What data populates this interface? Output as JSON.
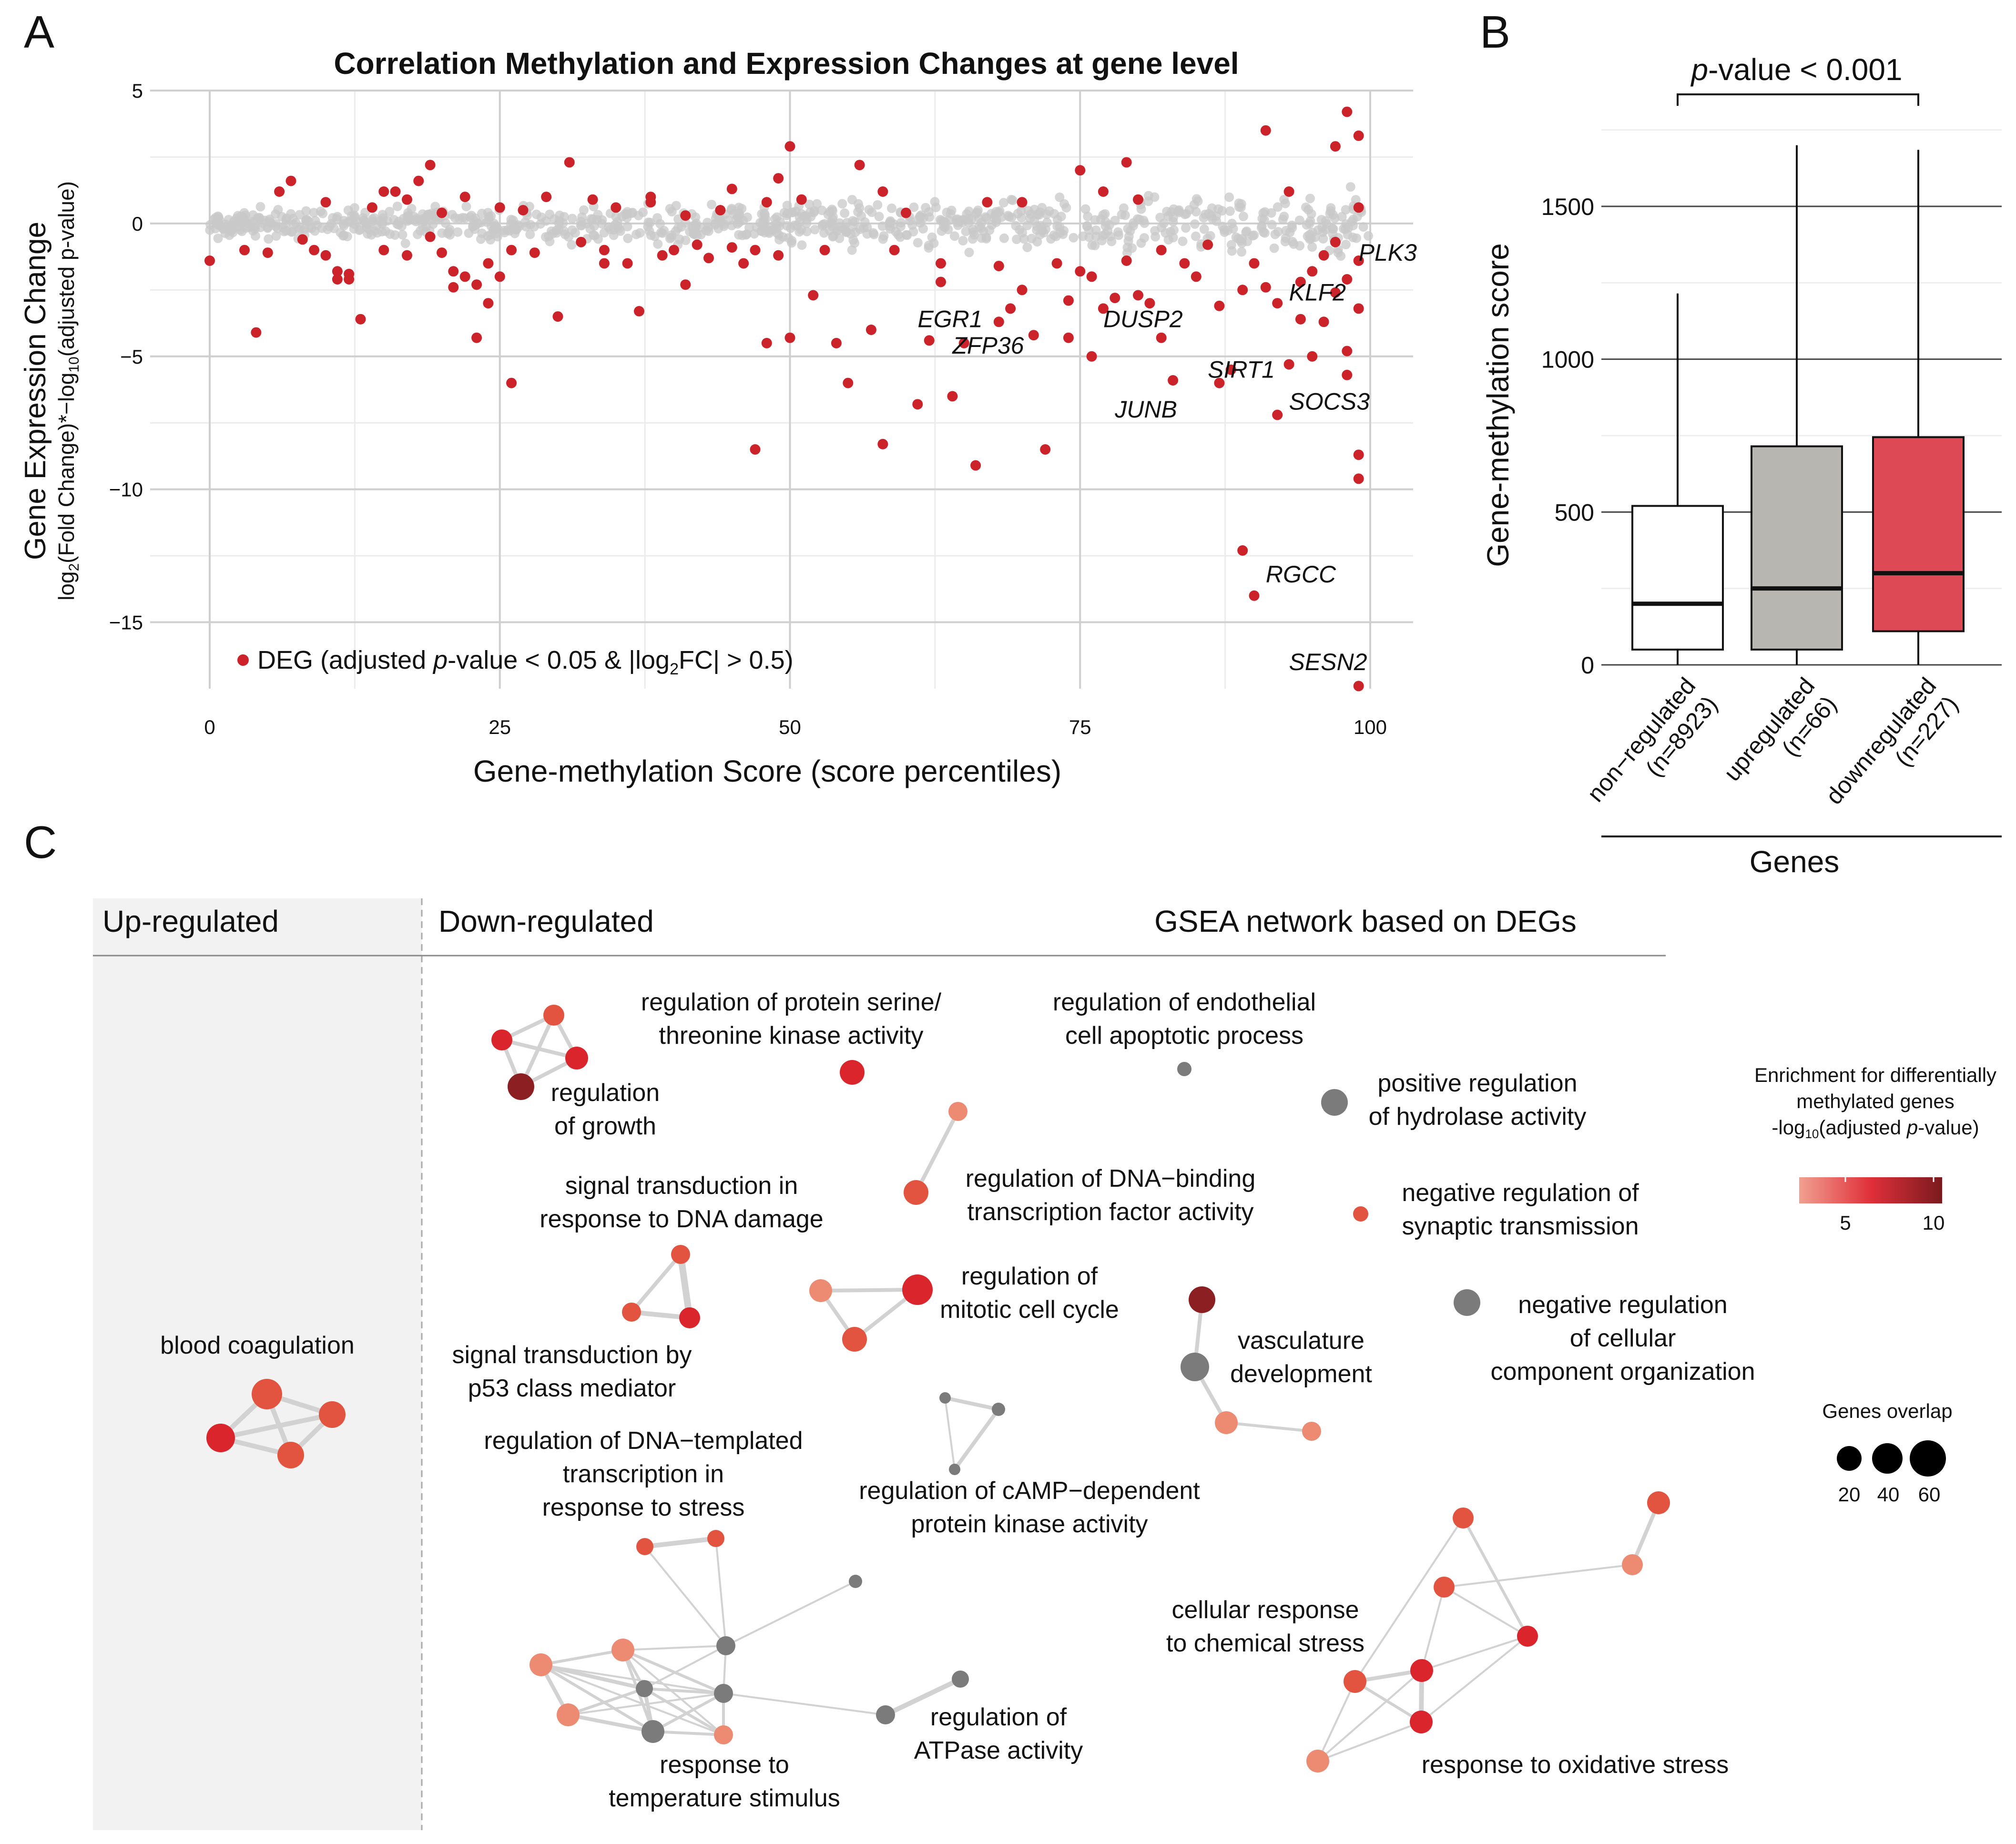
{
  "panels": {
    "a": {
      "letter": "A"
    },
    "b": {
      "letter": "B"
    },
    "c": {
      "letter": "C"
    }
  },
  "chart_data": [
    {
      "panel": "A",
      "type": "scatter",
      "title": "Correlation Methylation and Expression Changes at gene level",
      "xlabel": "Gene-methylation Score (score percentiles)",
      "ylabel_main": "Gene Expression Change",
      "ylabel_sub_parts": [
        "log",
        "2",
        "(Fold Change)*−log",
        "10",
        "(adjusted p-value)"
      ],
      "xlim": [
        0,
        100
      ],
      "ylim": [
        -17.5,
        5
      ],
      "x_ticks": [
        0,
        25,
        50,
        75,
        100
      ],
      "y_ticks": [
        5,
        0,
        -5,
        -10,
        -15
      ],
      "legend": {
        "position": "bottom-left",
        "parts": [
          "DEG (adjusted ",
          "p",
          "-value < 0.05 & |log",
          "2",
          "FC| > 0.5)"
        ],
        "color": "#cc2229"
      },
      "colors": {
        "deg": "#cc2229",
        "background": "#c8c8c8"
      },
      "background_band": {
        "description": "non-DEG genes",
        "y_range": [
          -1.0,
          1.0
        ]
      },
      "deg_points": [
        [
          0,
          -1.4
        ],
        [
          3,
          -1.0
        ],
        [
          4,
          -4.1
        ],
        [
          5,
          -1.1
        ],
        [
          6,
          1.2
        ],
        [
          7,
          1.6
        ],
        [
          8,
          -0.6
        ],
        [
          9,
          -1.0
        ],
        [
          10,
          -1.2
        ],
        [
          10,
          0.8
        ],
        [
          11,
          -1.8
        ],
        [
          11,
          -2.1
        ],
        [
          12,
          -1.9
        ],
        [
          12,
          -2.1
        ],
        [
          13,
          -3.6
        ],
        [
          14,
          0.6
        ],
        [
          15,
          -1.0
        ],
        [
          15,
          1.2
        ],
        [
          16,
          1.2
        ],
        [
          17,
          0.9
        ],
        [
          17,
          -1.2
        ],
        [
          18,
          1.6
        ],
        [
          19,
          2.2
        ],
        [
          19,
          -0.5
        ],
        [
          20,
          0.4
        ],
        [
          20,
          -1.1
        ],
        [
          21,
          -1.8
        ],
        [
          21,
          -2.4
        ],
        [
          22,
          1.0
        ],
        [
          22,
          -2.0
        ],
        [
          23,
          -2.3
        ],
        [
          23,
          -4.3
        ],
        [
          24,
          -1.5
        ],
        [
          24,
          -3.0
        ],
        [
          25,
          0.6
        ],
        [
          25,
          -2.0
        ],
        [
          26,
          -1.0
        ],
        [
          26,
          -6.0
        ],
        [
          27,
          0.5
        ],
        [
          28,
          -1.1
        ],
        [
          29,
          1.0
        ],
        [
          30,
          -3.5
        ],
        [
          31,
          2.3
        ],
        [
          32,
          -0.7
        ],
        [
          33,
          0.9
        ],
        [
          34,
          -1.0
        ],
        [
          34,
          -1.5
        ],
        [
          35,
          0.6
        ],
        [
          36,
          -1.5
        ],
        [
          37,
          -3.3
        ],
        [
          38,
          0.8
        ],
        [
          38,
          1.0
        ],
        [
          39,
          -1.2
        ],
        [
          40,
          -1.0
        ],
        [
          41,
          0.3
        ],
        [
          41,
          -2.3
        ],
        [
          42,
          -0.8
        ],
        [
          43,
          -1.3
        ],
        [
          44,
          0.5
        ],
        [
          45,
          1.3
        ],
        [
          45,
          -0.9
        ],
        [
          46,
          -1.5
        ],
        [
          47,
          -8.5
        ],
        [
          47,
          -1.0
        ],
        [
          48,
          -4.5
        ],
        [
          48,
          0.8
        ],
        [
          49,
          -1.2
        ],
        [
          49,
          1.7
        ],
        [
          50,
          -4.3
        ],
        [
          50,
          2.9
        ],
        [
          51,
          0.9
        ],
        [
          52,
          -2.7
        ],
        [
          53,
          -1.0
        ],
        [
          54,
          -4.5
        ],
        [
          55,
          -6.0
        ],
        [
          56,
          2.2
        ],
        [
          57,
          -4.0
        ],
        [
          58,
          -8.3
        ],
        [
          58,
          1.2
        ],
        [
          59,
          -1.0
        ],
        [
          60,
          0.4
        ],
        [
          61,
          -6.8
        ],
        [
          62,
          -4.4
        ],
        [
          63,
          -1.5
        ],
        [
          63,
          -2.2
        ],
        [
          64,
          -6.5
        ],
        [
          65,
          -4.5
        ],
        [
          66,
          -9.1
        ],
        [
          67,
          0.8
        ],
        [
          68,
          -3.7
        ],
        [
          68,
          -1.6
        ],
        [
          69,
          -3.2
        ],
        [
          70,
          0.8
        ],
        [
          70,
          -2.5
        ],
        [
          71,
          -4.2
        ],
        [
          72,
          -8.5
        ],
        [
          73,
          -1.5
        ],
        [
          74,
          -2.9
        ],
        [
          74,
          -4.3
        ],
        [
          75,
          2.0
        ],
        [
          75,
          -1.8
        ],
        [
          76,
          -2.0
        ],
        [
          76,
          -5.0
        ],
        [
          77,
          1.2
        ],
        [
          77,
          -3.2
        ],
        [
          78,
          -2.8
        ],
        [
          79,
          2.3
        ],
        [
          79,
          -1.4
        ],
        [
          80,
          0.9
        ],
        [
          80,
          -2.7
        ],
        [
          81,
          -3.0
        ],
        [
          82,
          -4.3
        ],
        [
          82,
          -1.0
        ],
        [
          83,
          -5.9
        ],
        [
          84,
          -1.5
        ],
        [
          85,
          -2.0
        ],
        [
          86,
          -0.8
        ],
        [
          87,
          -6.0
        ],
        [
          87,
          -3.1
        ],
        [
          88,
          -5.5
        ],
        [
          89,
          -2.5
        ],
        [
          89,
          -12.3
        ],
        [
          90,
          -14.0
        ],
        [
          90,
          -1.5
        ],
        [
          91,
          3.5
        ],
        [
          91,
          -2.4
        ],
        [
          92,
          -3.0
        ],
        [
          92,
          -7.2
        ],
        [
          93,
          1.2
        ],
        [
          93,
          -5.3
        ],
        [
          94,
          -2.2
        ],
        [
          94,
          -3.6
        ],
        [
          95,
          -1.8
        ],
        [
          95,
          -5.0
        ],
        [
          96,
          -3.7
        ],
        [
          97,
          2.9
        ],
        [
          97,
          -2.6
        ],
        [
          98,
          -4.8
        ],
        [
          98,
          -5.7
        ],
        [
          98,
          4.2
        ],
        [
          99,
          -1.4
        ],
        [
          99,
          -8.7
        ],
        [
          99,
          -9.6
        ],
        [
          99,
          -17.4
        ],
        [
          99,
          3.3
        ],
        [
          99,
          0.6
        ],
        [
          99,
          -3.2
        ],
        [
          98,
          -2.1
        ],
        [
          97,
          -0.7
        ],
        [
          96,
          -1.2
        ]
      ],
      "gene_labels": [
        {
          "gene": "PLK3",
          "x": 99,
          "y": -1.4
        },
        {
          "gene": "KLF2",
          "x": 93,
          "y": -2.9
        },
        {
          "gene": "EGR1",
          "x": 61,
          "y": -3.9
        },
        {
          "gene": "ZFP36",
          "x": 64,
          "y": -4.9
        },
        {
          "gene": "DUSP2",
          "x": 77,
          "y": -3.9
        },
        {
          "gene": "SIRT1",
          "x": 86,
          "y": -5.8
        },
        {
          "gene": "SOCS3",
          "x": 93,
          "y": -7.0
        },
        {
          "gene": "JUNB",
          "x": 78,
          "y": -7.3
        },
        {
          "gene": "RGCC",
          "x": 91,
          "y": -13.5
        },
        {
          "gene": "SESN2",
          "x": 93,
          "y": -16.8
        }
      ]
    },
    {
      "panel": "B",
      "type": "box",
      "ylabel": "Gene-methylation score",
      "xlabel": "Genes",
      "ylim": [
        0,
        1750
      ],
      "y_ticks": [
        0,
        500,
        1000,
        1500
      ],
      "annotation_parts": [
        "p",
        "-value < 0.001"
      ],
      "categories": [
        "non−regulated\n(n=8923)",
        "upregulated\n(n=66)",
        "downregulated\n(n=227)"
      ],
      "boxes": [
        {
          "whisker_low": 0,
          "q1": 50,
          "median": 200,
          "q3": 520,
          "whisker_high": 1215,
          "color": "#ffffff"
        },
        {
          "whisker_low": 0,
          "q1": 50,
          "median": 250,
          "q3": 715,
          "whisker_high": 1700,
          "color": "#b7b6b1"
        },
        {
          "whisker_low": 0,
          "q1": 110,
          "median": 300,
          "q3": 745,
          "whisker_high": 1685,
          "color": "#dd4a55"
        }
      ]
    }
  ],
  "network": {
    "up_header": "Up-regulated",
    "down_header": "Down-regulated",
    "network_title": "GSEA network based on DEGs",
    "terms": {
      "blood_coagulation": "blood coagulation",
      "regulation_of_growth": "regulation\nof growth",
      "serine_threonine": "regulation of protein serine/\nthreonine kinase activity",
      "endothelial": "regulation of endothelial\ncell apoptotic process",
      "hydrolase": "positive regulation\nof hydrolase activity",
      "signal_dna_damage": "signal transduction in\nresponse to DNA damage",
      "dna_binding": "regulation of DNA−binding\ntranscription factor activity",
      "synaptic": "negative regulation of\nsynaptic transmission",
      "mitotic": "regulation of\nmitotic cell cycle",
      "vasculature": "vasculature\ndevelopment",
      "cellular_component": "negative regulation\nof cellular\ncomponent organization",
      "p53": "signal transduction by\np53 class mediator",
      "dna_templated": "regulation of DNA−templated\ntranscription in\nresponse to stress",
      "camp": "regulation of cAMP−dependent\nprotein kinase activity",
      "chemical_stress": "cellular response\nto chemical stress",
      "atpase": "regulation of\nATPase activity",
      "temperature": "response to\ntemperature stimulus",
      "oxidative": "response to oxidative stress"
    },
    "legend_color": {
      "title_lines": [
        "Enrichment for differentially",
        "methylated genes"
      ],
      "title_line3_parts": [
        "-log",
        "10",
        "(adjusted ",
        "p",
        "-value)"
      ],
      "ticks": [
        "5",
        "10"
      ],
      "gradient": [
        "#f0a090",
        "#e0303a",
        "#7a1a1e"
      ]
    },
    "legend_size": {
      "title": "Genes overlap",
      "sizes": [
        "20",
        "40",
        "60"
      ]
    },
    "node_colors": {
      "grey": "#7b7b7b",
      "light": "#ec8a72",
      "mid": "#e2543f",
      "red": "#d9252b",
      "dark": "#8b1f22"
    }
  }
}
